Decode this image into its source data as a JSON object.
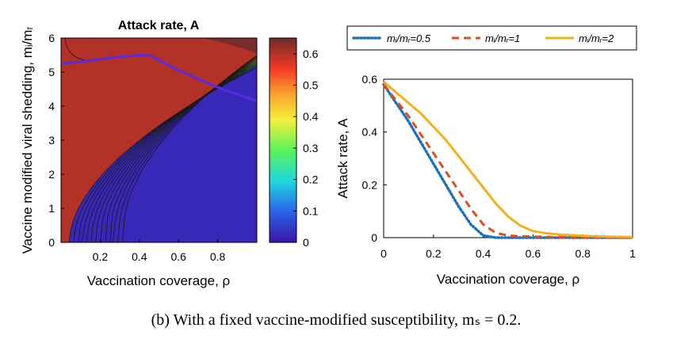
{
  "caption": "(b) With a fixed vaccine-modified susceptibility, mₛ = 0.2.",
  "chart_data": [
    {
      "type": "heatmap",
      "title": "Attack rate,  A",
      "xlabel": "Vaccination coverage,  ρ",
      "ylabel": "Vaccine modified viral shedding,  mᵢ/mᵣ",
      "xlim": [
        0,
        1
      ],
      "ylim": [
        0,
        6
      ],
      "xticks": [
        "0.2",
        "0.4",
        "0.6",
        "0.8"
      ],
      "yticks": [
        "0",
        "1",
        "2",
        "3",
        "4",
        "5",
        "6"
      ],
      "colorbar": {
        "range": [
          0,
          0.65
        ],
        "ticks": [
          "0",
          "0.1",
          "0.2",
          "0.3",
          "0.4",
          "0.5",
          "0.6"
        ],
        "colors": [
          "#3b14a6",
          "#2a63e8",
          "#1fd7de",
          "#5bf25a",
          "#f4f03a",
          "#f9a530",
          "#f43a24",
          "#6e2a2a"
        ]
      },
      "contour_levels": [
        0.05,
        0.1,
        0.15,
        0.2,
        0.25,
        0.3,
        0.35,
        0.4,
        0.45,
        0.5,
        0.55,
        0.6,
        0.65
      ],
      "threshold_curve": {
        "color": "#5a2be0",
        "x": [
          0.0,
          0.1,
          0.2,
          0.3,
          0.4,
          0.46,
          0.5,
          0.6,
          0.7,
          0.8,
          0.9,
          1.0
        ],
        "y": [
          5.25,
          5.3,
          5.38,
          5.45,
          5.5,
          5.48,
          5.35,
          5.05,
          4.8,
          4.55,
          4.35,
          4.15
        ]
      }
    },
    {
      "type": "line",
      "xlabel": "Vaccination coverage,  ρ",
      "ylabel": "Attack rate,  A",
      "xlim": [
        0,
        1
      ],
      "ylim": [
        0,
        0.6
      ],
      "xticks": [
        "0",
        "0.2",
        "0.4",
        "0.6",
        "0.8",
        "1"
      ],
      "yticks": [
        "0",
        "0.2",
        "0.4",
        "0.6"
      ],
      "legend_position": "top",
      "x": [
        0,
        0.05,
        0.1,
        0.15,
        0.2,
        0.25,
        0.3,
        0.35,
        0.4,
        0.45,
        0.5,
        0.55,
        0.6,
        0.65,
        0.7,
        0.8,
        0.9,
        1.0
      ],
      "series": [
        {
          "name": "mᵢ/mᵣ=0.5",
          "color": "#1a72bd",
          "style": "dotted",
          "values": [
            0.58,
            0.51,
            0.44,
            0.36,
            0.28,
            0.2,
            0.12,
            0.05,
            0.008,
            0.0,
            0.0,
            0.0,
            0.0,
            0.0,
            0.0,
            0.0,
            0.0,
            0.0
          ]
        },
        {
          "name": "mᵢ/mᵣ=1",
          "color": "#e04c1c",
          "style": "dashed",
          "values": [
            0.58,
            0.52,
            0.46,
            0.39,
            0.32,
            0.25,
            0.18,
            0.11,
            0.05,
            0.018,
            0.008,
            0.005,
            0.004,
            0.003,
            0.002,
            0.001,
            0.0,
            0.0
          ]
        },
        {
          "name": "mᵢ/mᵣ=2",
          "color": "#f2b01a",
          "style": "solid",
          "values": [
            0.59,
            0.55,
            0.51,
            0.47,
            0.42,
            0.37,
            0.31,
            0.25,
            0.19,
            0.13,
            0.08,
            0.045,
            0.025,
            0.017,
            0.012,
            0.007,
            0.004,
            0.002
          ]
        }
      ]
    }
  ]
}
